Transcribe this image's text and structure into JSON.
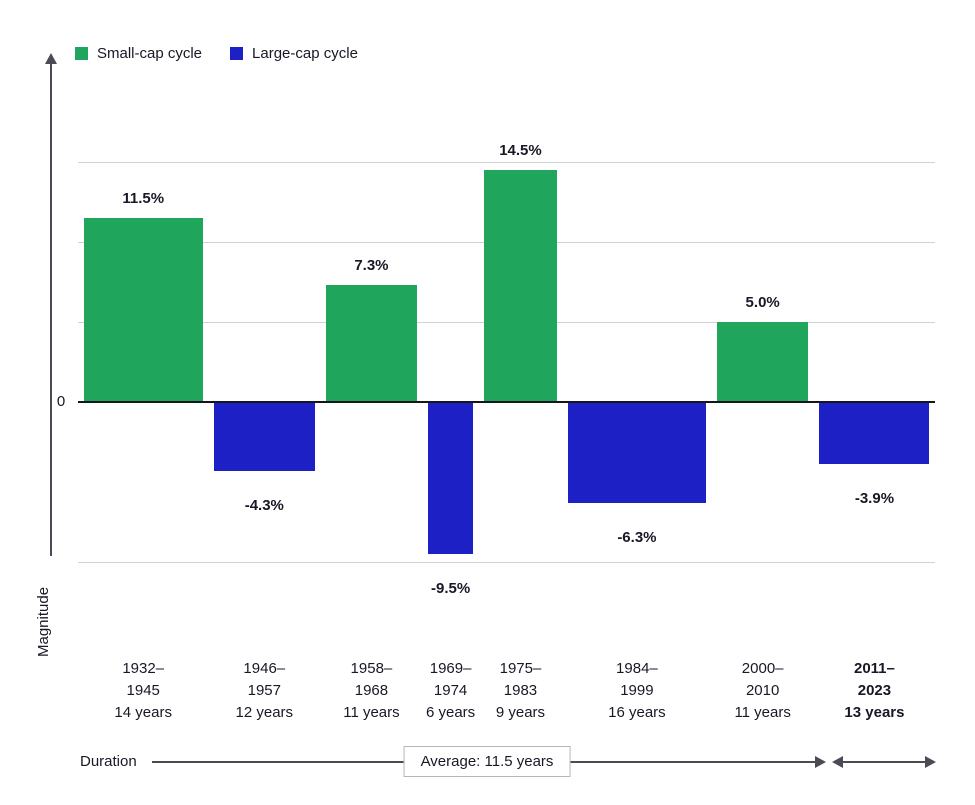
{
  "chart_data": {
    "type": "bar",
    "title": "",
    "ylabel": "Magnitude",
    "xlabel": "Duration",
    "zero_label": "0",
    "ylim": [
      -12,
      17
    ],
    "grid": true,
    "gridlines_pct": [
      15,
      10,
      5,
      0,
      -10
    ],
    "legend_position": "top-left",
    "legend": [
      {
        "label": "Small-cap cycle",
        "color": "#1fa65c"
      },
      {
        "label": "Large-cap cycle",
        "color": "#1d20c4"
      }
    ],
    "cycles": [
      {
        "series": "Small-cap cycle",
        "period": "1932-1945",
        "label_lines": [
          "1932–",
          "1945",
          "14 years"
        ],
        "duration_years": 14,
        "value_pct": 11.5,
        "value_label": "11.5%",
        "bold": false
      },
      {
        "series": "Large-cap cycle",
        "period": "1946-1957",
        "label_lines": [
          "1946–",
          "1957",
          "12 years"
        ],
        "duration_years": 12,
        "value_pct": -4.3,
        "value_label": "-4.3%",
        "bold": false
      },
      {
        "series": "Small-cap cycle",
        "period": "1958-1968",
        "label_lines": [
          "1958–",
          "1968",
          "11 years"
        ],
        "duration_years": 11,
        "value_pct": 7.3,
        "value_label": "7.3%",
        "bold": false
      },
      {
        "series": "Large-cap cycle",
        "period": "1969-1974",
        "label_lines": [
          "1969–",
          "1974",
          "6 years"
        ],
        "duration_years": 6,
        "value_pct": -9.5,
        "value_label": "-9.5%",
        "bold": false
      },
      {
        "series": "Small-cap cycle",
        "period": "1975-1983",
        "label_lines": [
          "1975–",
          "1983",
          "9 years"
        ],
        "duration_years": 9,
        "value_pct": 14.5,
        "value_label": "14.5%",
        "bold": false
      },
      {
        "series": "Large-cap cycle",
        "period": "1984-1999",
        "label_lines": [
          "1984–",
          "1999",
          "16 years"
        ],
        "duration_years": 16,
        "value_pct": -6.3,
        "value_label": "-6.3%",
        "bold": false
      },
      {
        "series": "Small-cap cycle",
        "period": "2000-2010",
        "label_lines": [
          "2000–",
          "2010",
          "11 years"
        ],
        "duration_years": 11,
        "value_pct": 5.0,
        "value_label": "5.0%",
        "bold": false
      },
      {
        "series": "Large-cap cycle",
        "period": "2011-2023",
        "label_lines": [
          "2011–",
          "2023",
          "13 years"
        ],
        "duration_years": 13,
        "value_pct": -3.9,
        "value_label": "-3.9%",
        "bold": true
      }
    ],
    "duration_axis": {
      "label": "Duration",
      "average_label": "Average: 11.5 years"
    }
  }
}
